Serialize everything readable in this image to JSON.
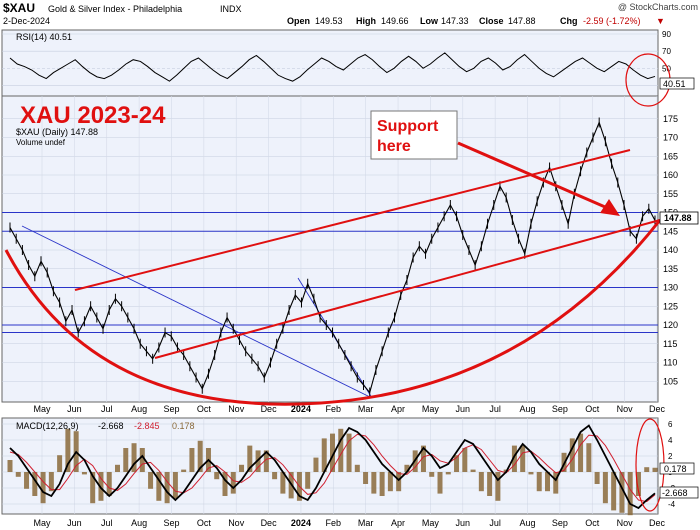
{
  "header": {
    "symbol": "$XAU",
    "name": "Gold & Silver Index - Philadelphia",
    "exchange": "INDX",
    "date": "2-Dec-2024",
    "open_label": "Open",
    "open": "149.53",
    "high_label": "High",
    "high": "149.66",
    "low_label": "Low",
    "low": "147.33",
    "close_label": "Close",
    "close": "147.88",
    "chg_label": "Chg",
    "chg": "-2.59 (-1.72%)",
    "chg_arrow": "▼",
    "credit": "@ StockCharts.com"
  },
  "annotations": {
    "title": "XAU 2023-24",
    "support_line1": "Support",
    "support_line2": "here"
  },
  "colors": {
    "price": "#000000",
    "annotation": "#e01010",
    "channel_blue": "#2a34c8",
    "panel_bg": "#eef2fb",
    "grid": "#c7cfdf",
    "macd_signal": "#d02030",
    "histogram": "#8a6a3a"
  },
  "chart_data": [
    {
      "type": "line",
      "panel": "RSI",
      "label": "RSI(14) 40.51",
      "last_value": "40.51",
      "ylim": [
        20,
        90
      ],
      "y_ticks": [
        "90",
        "70",
        "50",
        "30"
      ],
      "values": [
        62,
        55,
        52,
        48,
        42,
        38,
        45,
        50,
        55,
        60,
        52,
        45,
        40,
        38,
        42,
        48,
        55,
        60,
        58,
        52,
        45,
        40,
        35,
        42,
        50,
        58,
        62,
        55,
        48,
        42,
        38,
        45,
        52,
        60,
        65,
        58,
        50,
        42,
        38,
        35,
        40,
        48,
        55,
        62,
        58,
        52,
        48,
        55,
        62,
        66,
        60,
        52,
        45,
        50,
        58,
        64,
        58,
        50,
        55,
        62,
        68,
        60,
        52,
        46,
        50,
        58,
        62,
        56,
        48,
        52,
        60,
        66,
        58,
        50,
        44,
        40,
        46,
        52,
        58,
        62,
        56,
        50,
        46,
        52,
        58,
        55,
        48,
        42,
        38,
        40.51
      ]
    },
    {
      "type": "line",
      "panel": "price",
      "label": "$XAU (Daily) 147.88",
      "sublabel": "Volume undef",
      "last_value": "147.88",
      "ylim": [
        100,
        180
      ],
      "y_ticks": [
        "175",
        "170",
        "165",
        "160",
        "155",
        "150",
        "145",
        "140",
        "135",
        "130",
        "125",
        "120",
        "115",
        "110",
        "105"
      ],
      "x_labels": [
        "May",
        "Jun",
        "Jul",
        "Aug",
        "Sep",
        "Oct",
        "Nov",
        "Dec",
        "2024",
        "Feb",
        "Mar",
        "Apr",
        "May",
        "Jun",
        "Jul",
        "Aug",
        "Sep",
        "Oct",
        "Nov",
        "Dec"
      ],
      "values": [
        146,
        143,
        140,
        136,
        133,
        137,
        134,
        129,
        126,
        121,
        124,
        118,
        121,
        125,
        122,
        119,
        124,
        127,
        125,
        122,
        119,
        115,
        113,
        111,
        114,
        118,
        117,
        114,
        112,
        109,
        106,
        103,
        107,
        112,
        118,
        122,
        119,
        116,
        113,
        111,
        109,
        106,
        110,
        115,
        119,
        124,
        128,
        126,
        131,
        127,
        122,
        120,
        118,
        115,
        112,
        109,
        106,
        104,
        102,
        108,
        113,
        118,
        122,
        128,
        132,
        138,
        141,
        139,
        143,
        146,
        149,
        152,
        149,
        144,
        140,
        136,
        141,
        147,
        152,
        157,
        154,
        148,
        143,
        139,
        147,
        153,
        158,
        162,
        157,
        152,
        147,
        155,
        161,
        166,
        170,
        174,
        169,
        163,
        158,
        152,
        145,
        143,
        149,
        151,
        147.88
      ],
      "price_levels": [
        150,
        145,
        130,
        120,
        118
      ]
    },
    {
      "type": "line",
      "panel": "MACD",
      "label": "MACD(12,26,9)",
      "macd": "-2.668",
      "signal": "-2.845",
      "histogram": "0.178",
      "ylim": [
        -5,
        6.5
      ],
      "y_ticks": [
        "6",
        "4",
        "2",
        "0",
        "-2",
        "-4"
      ],
      "x_labels": [
        "May",
        "Jun",
        "Jul",
        "Aug",
        "Sep",
        "Oct",
        "Nov",
        "Dec",
        "2024",
        "Feb",
        "Mar",
        "Apr",
        "May",
        "Jun",
        "Jul",
        "Aug",
        "Sep",
        "Oct",
        "Nov",
        "Dec"
      ],
      "macd_values": [
        3,
        2,
        0.5,
        -1,
        -2.5,
        -3,
        -1.5,
        1,
        2.5,
        1.5,
        -0.5,
        -2,
        -3,
        -2,
        -0.5,
        1,
        2,
        0.5,
        -1,
        -2.5,
        -3.5,
        -2.5,
        -1,
        0.5,
        1.5,
        0.5,
        -1,
        -2,
        -1,
        0.5,
        1.5,
        2.5,
        1.5,
        0,
        -1.5,
        -3,
        -3.5,
        -2,
        0,
        2,
        4,
        5.5,
        5,
        4,
        2.5,
        1,
        0,
        -1,
        0,
        1.5,
        3,
        2,
        0.5,
        1,
        2.5,
        4,
        3.5,
        2,
        0.5,
        -1,
        0,
        2,
        3.5,
        2.5,
        1,
        0,
        -1,
        1,
        3,
        5,
        5.8,
        4,
        2,
        0,
        -2,
        -4,
        -4.5,
        -3.5,
        -2.668
      ],
      "signal_values": [
        2.5,
        2.2,
        1.2,
        0,
        -1.2,
        -2.2,
        -2.2,
        -0.8,
        0.8,
        1.6,
        0.8,
        -0.8,
        -2,
        -2.3,
        -1.5,
        -0.2,
        1,
        1.2,
        0.2,
        -1.2,
        -2.4,
        -2.6,
        -2,
        -0.8,
        0.5,
        0.8,
        0,
        -1.1,
        -1.3,
        -0.6,
        0.6,
        1.6,
        1.8,
        0.9,
        -0.4,
        -1.8,
        -2.8,
        -2.6,
        -1.4,
        0.4,
        2.2,
        3.9,
        4.7,
        4.5,
        3.4,
        2,
        0.8,
        -0.2,
        -0.3,
        0.6,
        1.9,
        2.2,
        1.4,
        1.1,
        1.8,
        3,
        3.4,
        2.8,
        1.5,
        0.2,
        -0.1,
        0.9,
        2.4,
        2.6,
        1.8,
        0.8,
        -0.1,
        0.2,
        1.6,
        3.4,
        4.6,
        4.5,
        3.3,
        1.6,
        -0.3,
        -2.2,
        -3.5,
        -3.7,
        -2.845
      ]
    }
  ]
}
